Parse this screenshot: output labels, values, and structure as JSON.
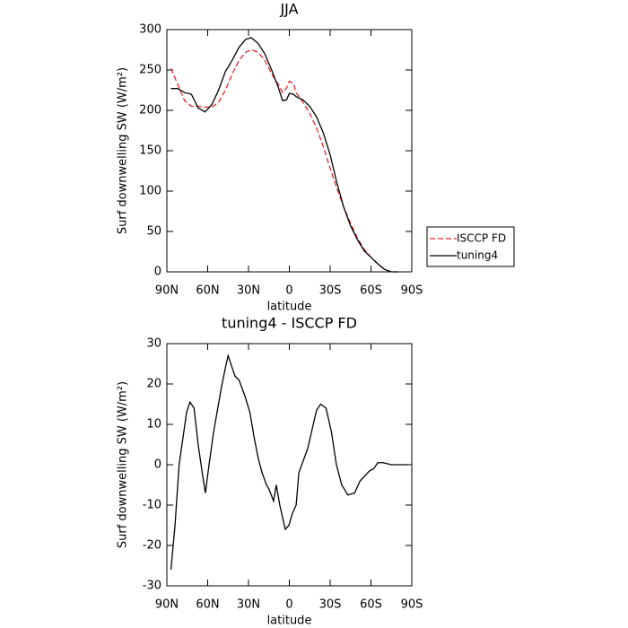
{
  "chart_data": [
    {
      "type": "line",
      "title": "JJA",
      "xlabel": "latitude",
      "ylabel": "Surf downwelling SW (W/m²)",
      "x": [
        87,
        82,
        77,
        72,
        67,
        62,
        57,
        52,
        47,
        42,
        37,
        32,
        28,
        23,
        18,
        13,
        8,
        5,
        2,
        0,
        -3,
        -5,
        -10,
        -15,
        -20,
        -25,
        -30,
        -35,
        -40,
        -45,
        -50,
        -55,
        -60,
        -65,
        -70,
        -75,
        -80
      ],
      "series": [
        {
          "name": "ISCCP FD",
          "color": "#e8262b",
          "style": "dashed",
          "values": [
            252,
            232,
            212,
            205,
            205,
            204,
            204,
            210,
            225,
            245,
            262,
            272,
            275,
            272,
            262,
            245,
            232,
            222,
            228,
            236,
            233,
            222,
            210,
            196,
            178,
            155,
            128,
            103,
            80,
            60,
            42,
            28,
            18,
            10,
            3,
            0,
            0
          ]
        },
        {
          "name": "tuning4",
          "color": "#000000",
          "style": "solid",
          "values": [
            227,
            227,
            222,
            220,
            203,
            198,
            207,
            225,
            248,
            262,
            278,
            288,
            290,
            283,
            270,
            250,
            228,
            212,
            213,
            221,
            220,
            217,
            213,
            205,
            192,
            172,
            145,
            110,
            80,
            57,
            40,
            26,
            18,
            10,
            3,
            0,
            0
          ]
        }
      ],
      "xlim": [
        90,
        -90
      ],
      "xticks": [
        {
          "value": 90,
          "label": "90N"
        },
        {
          "value": 60,
          "label": "60N"
        },
        {
          "value": 30,
          "label": "30N"
        },
        0,
        {
          "value": -30,
          "label": "30S"
        },
        {
          "value": -60,
          "label": "60S"
        },
        {
          "value": -90,
          "label": "90S"
        }
      ],
      "ylim": [
        0,
        300
      ],
      "yticks": [
        0,
        50,
        100,
        150,
        200,
        250,
        300
      ],
      "legend": "outside-right"
    },
    {
      "type": "line",
      "title": "tuning4 - ISCCP FD",
      "xlabel": "latitude",
      "ylabel": "Surf downwelling SW (W/m²)",
      "x": [
        87,
        84,
        81,
        75.5,
        73,
        70,
        67,
        64,
        61.7,
        59,
        55.7,
        50,
        47,
        45,
        40,
        37,
        32.6,
        29,
        26,
        22.8,
        20,
        16.8,
        15,
        11.6,
        9.6,
        7,
        3,
        0.3,
        -2.3,
        -5,
        -7,
        -13.5,
        -20,
        -23,
        -27,
        -31,
        -34.6,
        -38.5,
        -43,
        -48,
        -52,
        -59,
        -62,
        -65,
        -69,
        -75,
        -87
      ],
      "series": [
        {
          "color": "#000000",
          "style": "solid",
          "values": [
            -26,
            -15,
            0,
            13,
            15.5,
            14,
            5,
            -2,
            -7,
            0,
            8,
            19,
            24,
            27,
            22,
            21,
            17,
            13,
            7,
            1.5,
            -2,
            -5,
            -6,
            -9,
            -5,
            -10,
            -16,
            -15,
            -12,
            -10,
            -2,
            4,
            13.5,
            15,
            14,
            8,
            0,
            -5,
            -7.5,
            -7,
            -4,
            -1.5,
            -1,
            0.5,
            0.5,
            0,
            0
          ]
        }
      ],
      "xlim": [
        90,
        -90
      ],
      "xticks": [
        {
          "value": 90,
          "label": "90N"
        },
        {
          "value": 60,
          "label": "60N"
        },
        {
          "value": 30,
          "label": "30N"
        },
        0,
        {
          "value": -30,
          "label": "30S"
        },
        {
          "value": -60,
          "label": "60S"
        },
        {
          "value": -90,
          "label": "90S"
        }
      ],
      "ylim": [
        -30,
        30
      ],
      "yticks": [
        -30,
        -20,
        -10,
        0,
        10,
        20,
        30
      ]
    }
  ]
}
